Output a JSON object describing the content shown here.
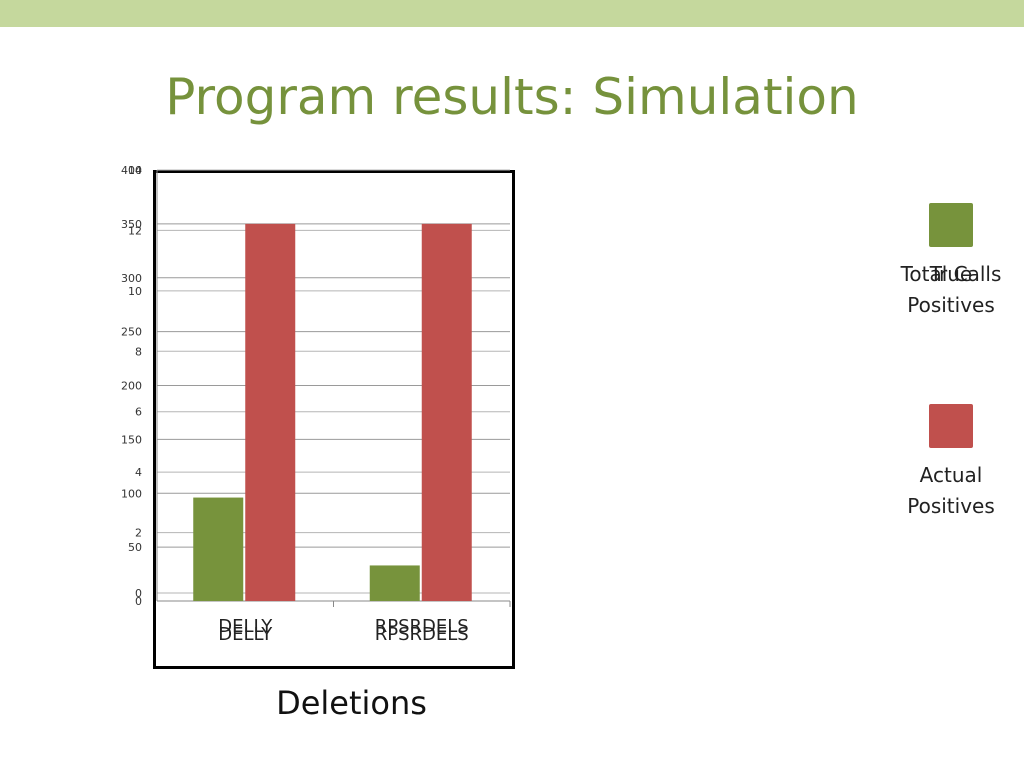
{
  "slide": {
    "title": "Program results: Simulation",
    "band_color": "#c5d89d",
    "title_color": "#76923c"
  },
  "chart_data": {
    "type": "bar",
    "title": "",
    "xlabel": "Deletions",
    "ylabel": "",
    "categories": [
      "DELLY",
      "RPSRDELS"
    ],
    "series": [
      {
        "name": "Total Calls",
        "color": "#77933c",
        "values": [
          96,
          33
        ]
      },
      {
        "name": "Actual Positives",
        "color": "#c0504d",
        "values": [
          350,
          350
        ]
      }
    ],
    "ylim": [
      0,
      400
    ],
    "yticks": [
      0,
      50,
      100,
      150,
      200,
      250,
      300,
      350,
      400
    ],
    "ylim_secondary": [
      0,
      14
    ],
    "yticks_secondary": [
      0,
      2,
      4,
      6,
      8,
      10,
      12,
      14
    ],
    "legend_overlap_labels": [
      "True Positives"
    ],
    "grid": true,
    "legend_position": "right"
  }
}
